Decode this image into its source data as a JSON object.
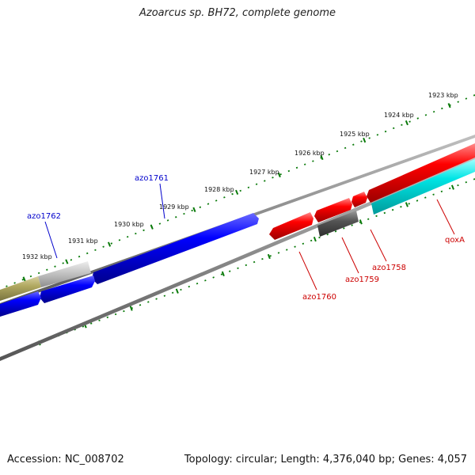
{
  "title": "Azoarcus sp. BH72, complete genome",
  "footer": {
    "accession": "Accession: NC_008702",
    "summary": "Topology: circular; Length: 4,376,040 bp; Genes: 4,057"
  },
  "colors": {
    "forward_gene": "#ff0000",
    "reverse_gene": "#0000ff",
    "other_gene": "#00ffff",
    "pseudo_gene": "#555555",
    "backbone": "#888888",
    "tick": "#0a7a0a"
  },
  "kbp_labels": [
    "1923 kbp",
    "1924 kbp",
    "1925 kbp",
    "1926 kbp",
    "1927 kbp",
    "1928 kbp",
    "1929 kbp",
    "1930 kbp",
    "1931 kbp",
    "1932 kbp"
  ],
  "gene_labels": {
    "azo1761": "azo1761",
    "azo1762": "azo1762",
    "azo1760": "azo1760",
    "azo1759": "azo1759",
    "azo1758": "azo1758",
    "qoxA": "qoxA"
  }
}
